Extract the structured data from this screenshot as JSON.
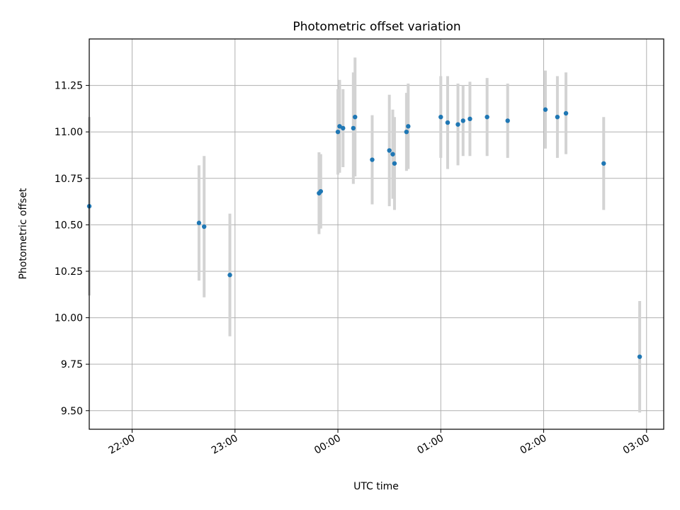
{
  "chart_data": {
    "type": "scatter",
    "title": "Photometric offset variation",
    "xlabel": "UTC time",
    "ylabel": "Photometric offset",
    "xlim": [
      "21:35",
      "03:10"
    ],
    "ylim": [
      9.4,
      11.5
    ],
    "grid": true,
    "x_ticks": [
      "22:00",
      "23:00",
      "00:00",
      "01:00",
      "02:00",
      "03:00"
    ],
    "y_ticks": [
      "9.50",
      "9.75",
      "10.00",
      "10.25",
      "10.50",
      "10.75",
      "11.00",
      "11.25"
    ],
    "colors": {
      "point": "#1f77b4",
      "errorbar": "#d3d3d3",
      "grid": "#b0b0b0"
    },
    "points": [
      {
        "x": "21:35",
        "y": 10.6,
        "err": 0.48
      },
      {
        "x": "22:39",
        "y": 10.51,
        "err": 0.31
      },
      {
        "x": "22:42",
        "y": 10.49,
        "err": 0.38
      },
      {
        "x": "22:57",
        "y": 10.23,
        "err": 0.33
      },
      {
        "x": "23:49",
        "y": 10.67,
        "err": 0.22
      },
      {
        "x": "23:50",
        "y": 10.68,
        "err": 0.2
      },
      {
        "x": "00:00",
        "y": 11.0,
        "err": 0.23
      },
      {
        "x": "00:01",
        "y": 11.03,
        "err": 0.25
      },
      {
        "x": "00:03",
        "y": 11.02,
        "err": 0.21
      },
      {
        "x": "00:09",
        "y": 11.02,
        "err": 0.3
      },
      {
        "x": "00:10",
        "y": 11.08,
        "err": 0.32
      },
      {
        "x": "00:20",
        "y": 10.85,
        "err": 0.24
      },
      {
        "x": "00:30",
        "y": 10.9,
        "err": 0.3
      },
      {
        "x": "00:32",
        "y": 10.88,
        "err": 0.24
      },
      {
        "x": "00:33",
        "y": 10.83,
        "err": 0.25
      },
      {
        "x": "00:40",
        "y": 11.0,
        "err": 0.21
      },
      {
        "x": "00:41",
        "y": 11.03,
        "err": 0.23
      },
      {
        "x": "01:00",
        "y": 11.08,
        "err": 0.22
      },
      {
        "x": "01:04",
        "y": 11.05,
        "err": 0.25
      },
      {
        "x": "01:10",
        "y": 11.04,
        "err": 0.22
      },
      {
        "x": "01:13",
        "y": 11.06,
        "err": 0.19
      },
      {
        "x": "01:17",
        "y": 11.07,
        "err": 0.2
      },
      {
        "x": "01:27",
        "y": 11.08,
        "err": 0.21
      },
      {
        "x": "01:39",
        "y": 11.06,
        "err": 0.2
      },
      {
        "x": "02:01",
        "y": 11.12,
        "err": 0.21
      },
      {
        "x": "02:08",
        "y": 11.08,
        "err": 0.22
      },
      {
        "x": "02:13",
        "y": 11.1,
        "err": 0.22
      },
      {
        "x": "02:35",
        "y": 10.83,
        "err": 0.25
      },
      {
        "x": "02:56",
        "y": 9.79,
        "err": 0.3
      }
    ]
  }
}
